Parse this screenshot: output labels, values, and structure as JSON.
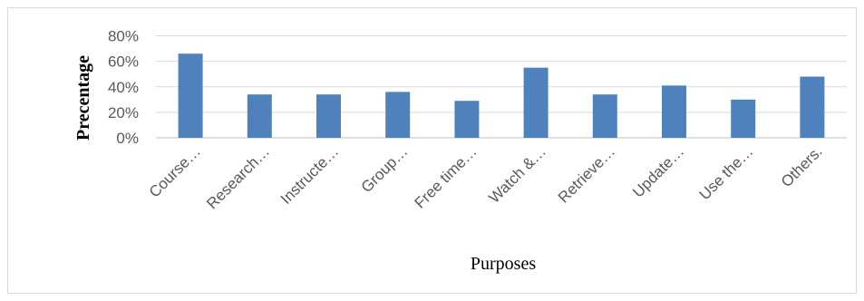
{
  "chart_data": {
    "type": "bar",
    "categories": [
      "Course…",
      "Research…",
      "Instructe…",
      "Group…",
      "Free time…",
      "Watch &…",
      "Retrieve…",
      "Update…",
      "Use the…",
      "Others."
    ],
    "values": [
      66,
      34,
      34,
      36,
      29,
      55,
      34,
      41,
      30,
      48
    ],
    "ylabel": "Precentage",
    "xlabel": "Purposes",
    "ylim": [
      0,
      80
    ],
    "yticks": [
      0,
      20,
      40,
      60,
      80
    ],
    "ytick_labels": [
      "0%",
      "20%",
      "40%",
      "60%",
      "80%"
    ],
    "bar_color": "#4f81bd",
    "grid": true,
    "legend": "none"
  }
}
